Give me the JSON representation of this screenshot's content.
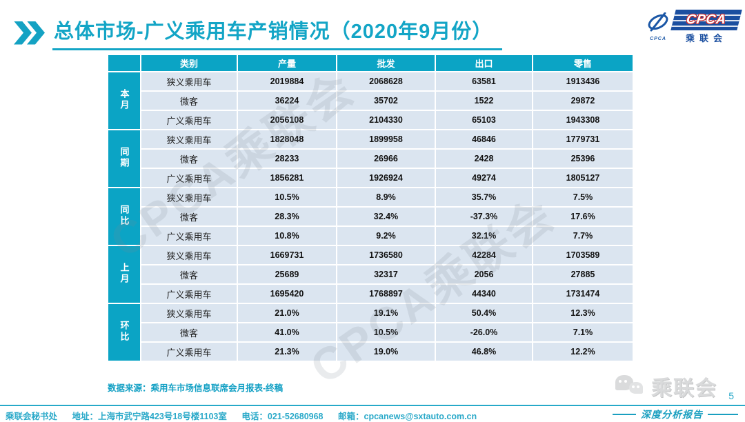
{
  "header": {
    "title": "总体市场-广义乘用车产销情况（2020年9月份）"
  },
  "logo": {
    "swirl_caption": "CPCA",
    "main": "CPCA",
    "sub": "乘联会"
  },
  "table": {
    "headers": [
      "类别",
      "产量",
      "批发",
      "出口",
      "零售"
    ],
    "groups": [
      {
        "label": "本月",
        "rows": [
          {
            "category": "狭义乘用车",
            "values": [
              "2019884",
              "2068628",
              "63581",
              "1913436"
            ]
          },
          {
            "category": "微客",
            "values": [
              "36224",
              "35702",
              "1522",
              "29872"
            ]
          },
          {
            "category": "广义乘用车",
            "values": [
              "2056108",
              "2104330",
              "65103",
              "1943308"
            ]
          }
        ]
      },
      {
        "label": "同期",
        "rows": [
          {
            "category": "狭义乘用车",
            "values": [
              "1828048",
              "1899958",
              "46846",
              "1779731"
            ]
          },
          {
            "category": "微客",
            "values": [
              "28233",
              "26966",
              "2428",
              "25396"
            ]
          },
          {
            "category": "广义乘用车",
            "values": [
              "1856281",
              "1926924",
              "49274",
              "1805127"
            ]
          }
        ]
      },
      {
        "label": "同比",
        "rows": [
          {
            "category": "狭义乘用车",
            "values": [
              "10.5%",
              "8.9%",
              "35.7%",
              "7.5%"
            ]
          },
          {
            "category": "微客",
            "values": [
              "28.3%",
              "32.4%",
              "-37.3%",
              "17.6%"
            ]
          },
          {
            "category": "广义乘用车",
            "values": [
              "10.8%",
              "9.2%",
              "32.1%",
              "7.7%"
            ]
          }
        ]
      },
      {
        "label": "上月",
        "rows": [
          {
            "category": "狭义乘用车",
            "values": [
              "1669731",
              "1736580",
              "42284",
              "1703589"
            ]
          },
          {
            "category": "微客",
            "values": [
              "25689",
              "32317",
              "2056",
              "27885"
            ]
          },
          {
            "category": "广义乘用车",
            "values": [
              "1695420",
              "1768897",
              "44340",
              "1731474"
            ]
          }
        ]
      },
      {
        "label": "环比",
        "rows": [
          {
            "category": "狭义乘用车",
            "values": [
              "21.0%",
              "19.1%",
              "50.4%",
              "12.3%"
            ]
          },
          {
            "category": "微客",
            "values": [
              "41.0%",
              "10.5%",
              "-26.0%",
              "7.1%"
            ]
          },
          {
            "category": "广义乘用车",
            "values": [
              "21.3%",
              "19.0%",
              "46.8%",
              "12.2%"
            ]
          }
        ]
      }
    ]
  },
  "source_note": "数据来源：乘用车市场信息联席会月报表-终稿",
  "footer": {
    "org": "乘联会秘书处",
    "address": "地址：上海市武宁路423号18号楼1103室",
    "phone": "电话：021-52680968",
    "email": "邮箱：cpcanews@sxtauto.com.cn",
    "wechat_name": "乘联会",
    "report_label": "深度分析报告",
    "page_number": "5"
  },
  "watermark_text": "CPCA乘联会",
  "colors": {
    "accent_cyan": "#0ba4c5",
    "cell_bg": "#dbe5f0",
    "logo_blue": "#1b4fa0",
    "logo_red": "#d03030"
  }
}
